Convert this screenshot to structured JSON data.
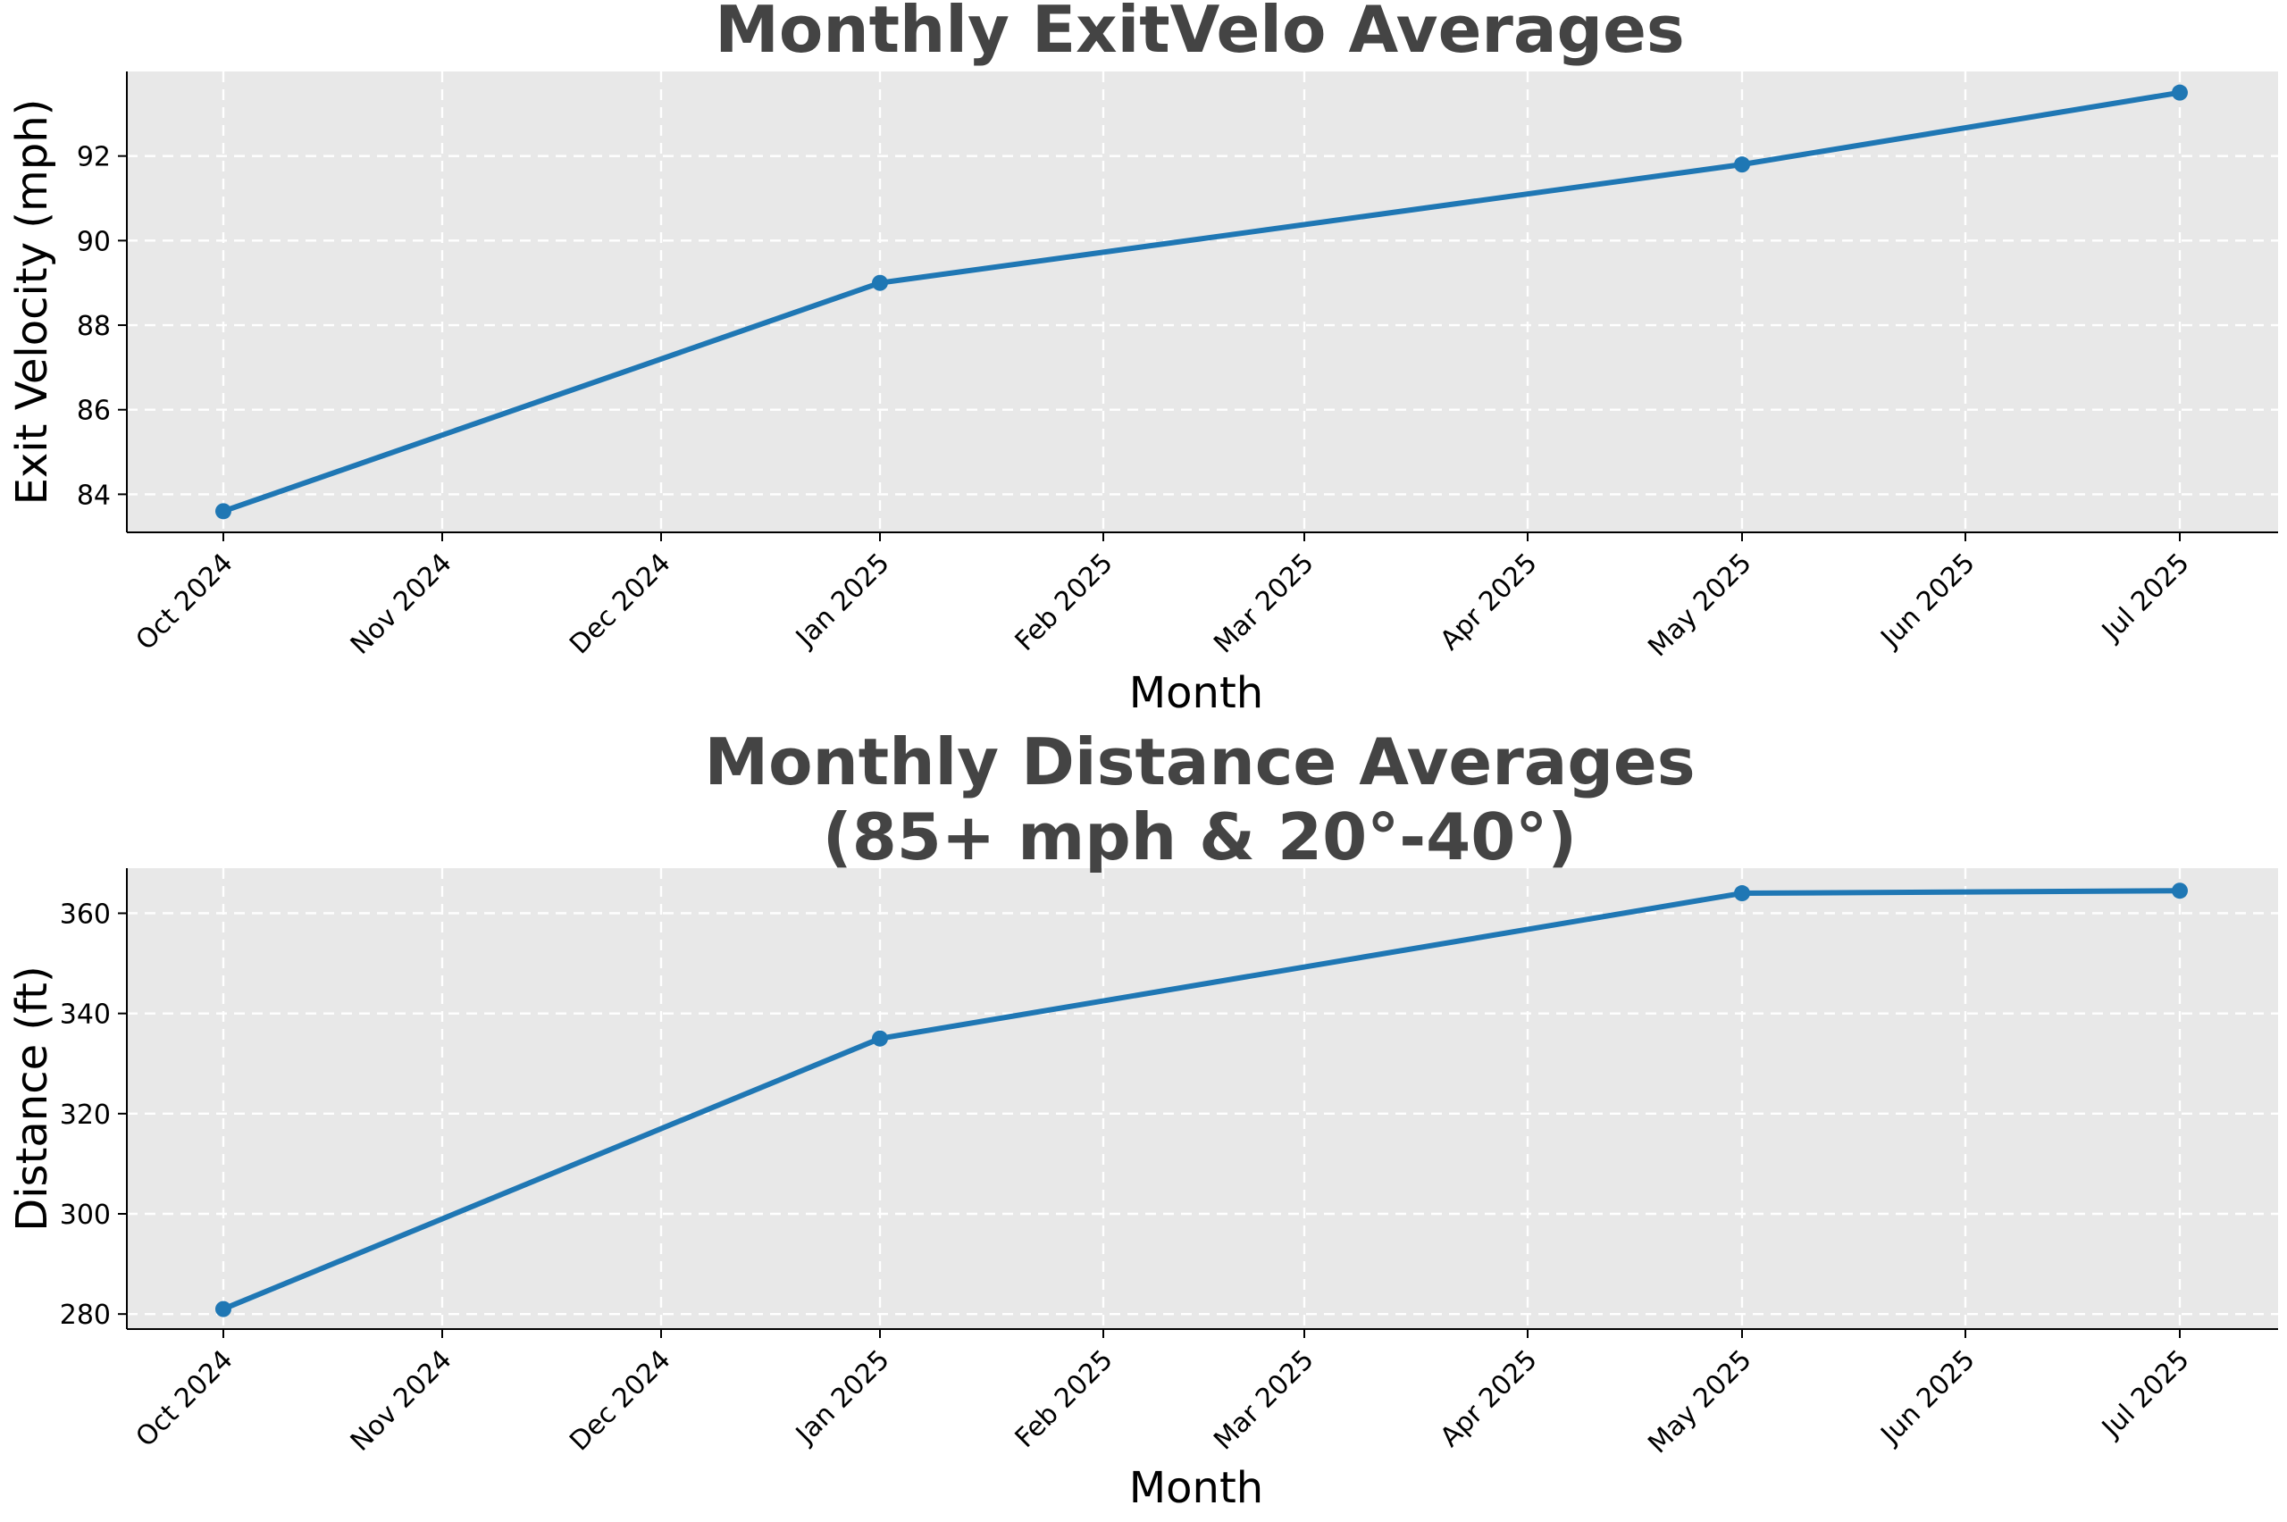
{
  "colors": {
    "series": "#1f77b4",
    "plot_background": "#e8e8e8",
    "grid": "#ffffff",
    "title": "#444444"
  },
  "chart_data": [
    {
      "type": "line",
      "title": "Monthly ExitVelo Averages",
      "xlabel": "Month",
      "ylabel": "Exit Velocity (mph)",
      "x_ticks": [
        "Oct 2024",
        "Nov 2024",
        "Dec 2024",
        "Jan 2025",
        "Feb 2025",
        "Mar 2025",
        "Apr 2025",
        "May 2025",
        "Jun 2025",
        "Jul 2025"
      ],
      "y_ticks": [
        84,
        86,
        88,
        90,
        92
      ],
      "ylim": [
        83.1,
        94.0
      ],
      "grid": true,
      "series": [
        {
          "x": [
            "2024-10-01",
            "2025-01-01",
            "2025-05-01",
            "2025-07-01"
          ],
          "y": [
            83.6,
            89.0,
            91.8,
            93.5
          ]
        }
      ]
    },
    {
      "type": "line",
      "title": [
        "Monthly Distance Averages",
        "(85+ mph & 20°-40°)"
      ],
      "xlabel": "Month",
      "ylabel": "Distance (ft)",
      "x_ticks": [
        "Oct 2024",
        "Nov 2024",
        "Dec 2024",
        "Jan 2025",
        "Feb 2025",
        "Mar 2025",
        "Apr 2025",
        "May 2025",
        "Jun 2025",
        "Jul 2025"
      ],
      "y_ticks": [
        280,
        300,
        320,
        340,
        360
      ],
      "ylim": [
        277,
        369
      ],
      "grid": true,
      "series": [
        {
          "x": [
            "2024-10-01",
            "2025-01-01",
            "2025-05-01",
            "2025-07-01"
          ],
          "y": [
            281,
            335,
            364,
            364.5
          ]
        }
      ]
    }
  ]
}
